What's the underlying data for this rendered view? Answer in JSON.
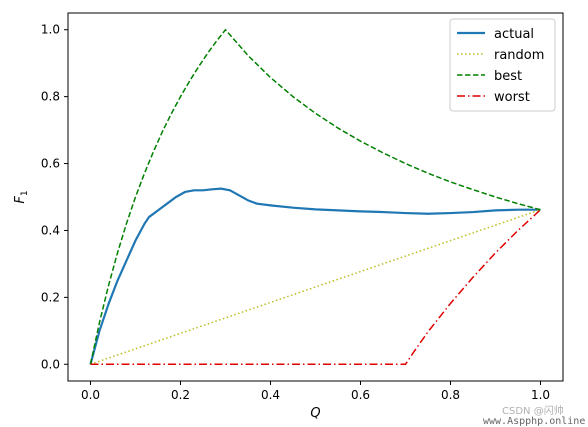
{
  "chart_data": {
    "type": "line",
    "xlabel": "Q",
    "ylabel_main": "F",
    "ylabel_sub": "1",
    "xlim": [
      -0.05,
      1.05
    ],
    "ylim": [
      -0.05,
      1.05
    ],
    "xticks": [
      0.0,
      0.2,
      0.4,
      0.6,
      0.8,
      1.0
    ],
    "xtick_labels": [
      "0.0",
      "0.2",
      "0.4",
      "0.6",
      "0.8",
      "1.0"
    ],
    "yticks": [
      0.0,
      0.2,
      0.4,
      0.6,
      0.8,
      1.0
    ],
    "ytick_labels": [
      "0.0",
      "0.2",
      "0.4",
      "0.6",
      "0.8",
      "1.0"
    ],
    "grid": false,
    "legend_position": "top-right",
    "series": [
      {
        "name": "actual",
        "color": "#1f77b4",
        "style": "solid",
        "x": [
          0.0,
          0.02,
          0.04,
          0.06,
          0.08,
          0.1,
          0.12,
          0.13,
          0.15,
          0.17,
          0.19,
          0.21,
          0.23,
          0.25,
          0.27,
          0.29,
          0.31,
          0.33,
          0.35,
          0.37,
          0.4,
          0.45,
          0.5,
          0.55,
          0.6,
          0.65,
          0.7,
          0.75,
          0.8,
          0.85,
          0.9,
          0.95,
          1.0
        ],
        "y": [
          0.0,
          0.1,
          0.18,
          0.25,
          0.31,
          0.37,
          0.42,
          0.44,
          0.46,
          0.48,
          0.5,
          0.515,
          0.52,
          0.52,
          0.523,
          0.525,
          0.52,
          0.505,
          0.49,
          0.48,
          0.475,
          0.468,
          0.463,
          0.46,
          0.457,
          0.455,
          0.452,
          0.45,
          0.452,
          0.455,
          0.46,
          0.462,
          0.462
        ]
      },
      {
        "name": "random",
        "color": "#bcbd22",
        "style": "dotted",
        "x": [
          0.0,
          1.0
        ],
        "y": [
          0.0,
          0.462
        ]
      },
      {
        "name": "best",
        "color": "#008000",
        "style": "dashed",
        "x": [
          0.0,
          0.02,
          0.04,
          0.06,
          0.08,
          0.1,
          0.12,
          0.14,
          0.16,
          0.18,
          0.2,
          0.22,
          0.24,
          0.26,
          0.28,
          0.3,
          0.35,
          0.4,
          0.45,
          0.5,
          0.55,
          0.6,
          0.65,
          0.7,
          0.75,
          0.8,
          0.85,
          0.9,
          0.95,
          1.0
        ],
        "y": [
          0.0,
          0.125,
          0.235,
          0.333,
          0.421,
          0.5,
          0.571,
          0.636,
          0.696,
          0.75,
          0.8,
          0.846,
          0.889,
          0.929,
          0.966,
          1.0,
          0.923,
          0.857,
          0.8,
          0.75,
          0.706,
          0.667,
          0.632,
          0.6,
          0.571,
          0.545,
          0.522,
          0.5,
          0.48,
          0.462
        ]
      },
      {
        "name": "worst",
        "color": "#e00000",
        "style": "dashdot",
        "x": [
          0.0,
          0.7,
          0.72,
          0.75,
          0.8,
          0.85,
          0.9,
          0.95,
          1.0
        ],
        "y": [
          0.0,
          0.0,
          0.04,
          0.097,
          0.182,
          0.26,
          0.333,
          0.4,
          0.462
        ]
      }
    ]
  },
  "watermark": {
    "line1": "CSDN @闪帅",
    "line2": "www.Aspphp.online"
  }
}
